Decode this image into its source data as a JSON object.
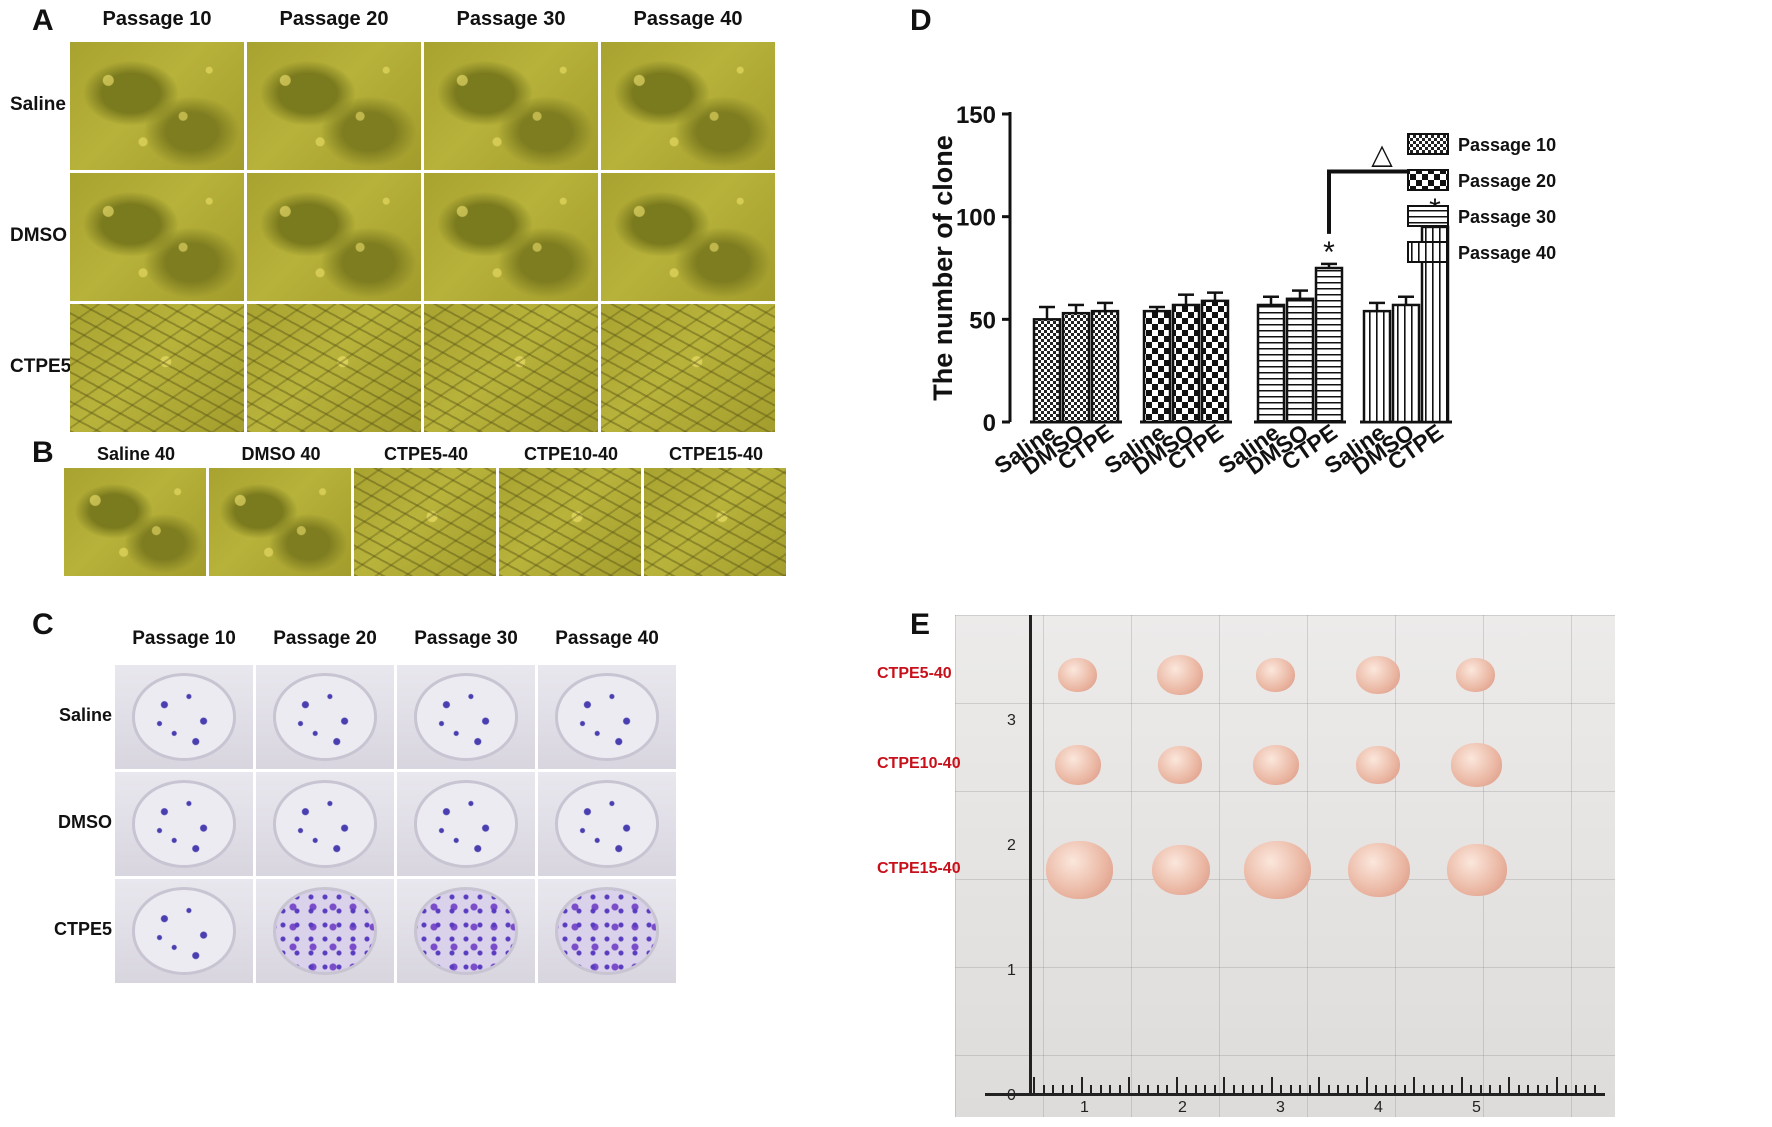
{
  "panels": {
    "A": {
      "letter": "A",
      "columns": [
        "Passage 10",
        "Passage 20",
        "Passage 30",
        "Passage 40"
      ],
      "rows": [
        "Saline",
        "DMSO",
        "CTPE5"
      ]
    },
    "B": {
      "letter": "B",
      "columns": [
        "Saline 40",
        "DMSO 40",
        "CTPE5-40",
        "CTPE10-40",
        "CTPE15-40"
      ]
    },
    "C": {
      "letter": "C",
      "columns": [
        "Passage 10",
        "Passage 20",
        "Passage 30",
        "Passage 40"
      ],
      "rows": [
        "Saline",
        "DMSO",
        "CTPE5"
      ]
    },
    "D": {
      "letter": "D"
    },
    "E": {
      "letter": "E",
      "rows": [
        "CTPE5-40",
        "CTPE10-40",
        "CTPE15-40"
      ],
      "ruler_x": [
        "1",
        "2",
        "3",
        "4",
        "5"
      ],
      "ruler_y": [
        "0",
        "1",
        "2",
        "3"
      ]
    }
  },
  "chart_data": {
    "type": "bar",
    "title": "",
    "ylabel": "The number of clone",
    "xlabel": "",
    "ylim": [
      0,
      150
    ],
    "yticks": [
      0,
      50,
      100,
      150
    ],
    "groups": [
      {
        "name": "Passage 10",
        "categories": [
          "Saline",
          "DMSO",
          "CTPE"
        ],
        "values": [
          50,
          53,
          54
        ],
        "errors": [
          6,
          4,
          4
        ],
        "significance": [
          "",
          "",
          ""
        ]
      },
      {
        "name": "Passage 20",
        "categories": [
          "Saline",
          "DMSO",
          "CTPE"
        ],
        "values": [
          54,
          57,
          59
        ],
        "errors": [
          2,
          5,
          4
        ],
        "significance": [
          "",
          "",
          ""
        ]
      },
      {
        "name": "Passage 30",
        "categories": [
          "Saline",
          "DMSO",
          "CTPE"
        ],
        "values": [
          57,
          60,
          75
        ],
        "errors": [
          4,
          4,
          2
        ],
        "significance": [
          "",
          "",
          "*"
        ]
      },
      {
        "name": "Passage 40",
        "categories": [
          "Saline",
          "DMSO",
          "CTPE"
        ],
        "values": [
          54,
          57,
          95
        ],
        "errors": [
          4,
          4,
          3
        ],
        "significance": [
          "",
          "",
          "*"
        ]
      }
    ],
    "legend": [
      "Passage 10",
      "Passage 20",
      "Passage 30",
      "Passage 40"
    ],
    "legend_position": "right",
    "bracket_symbol": "△"
  }
}
